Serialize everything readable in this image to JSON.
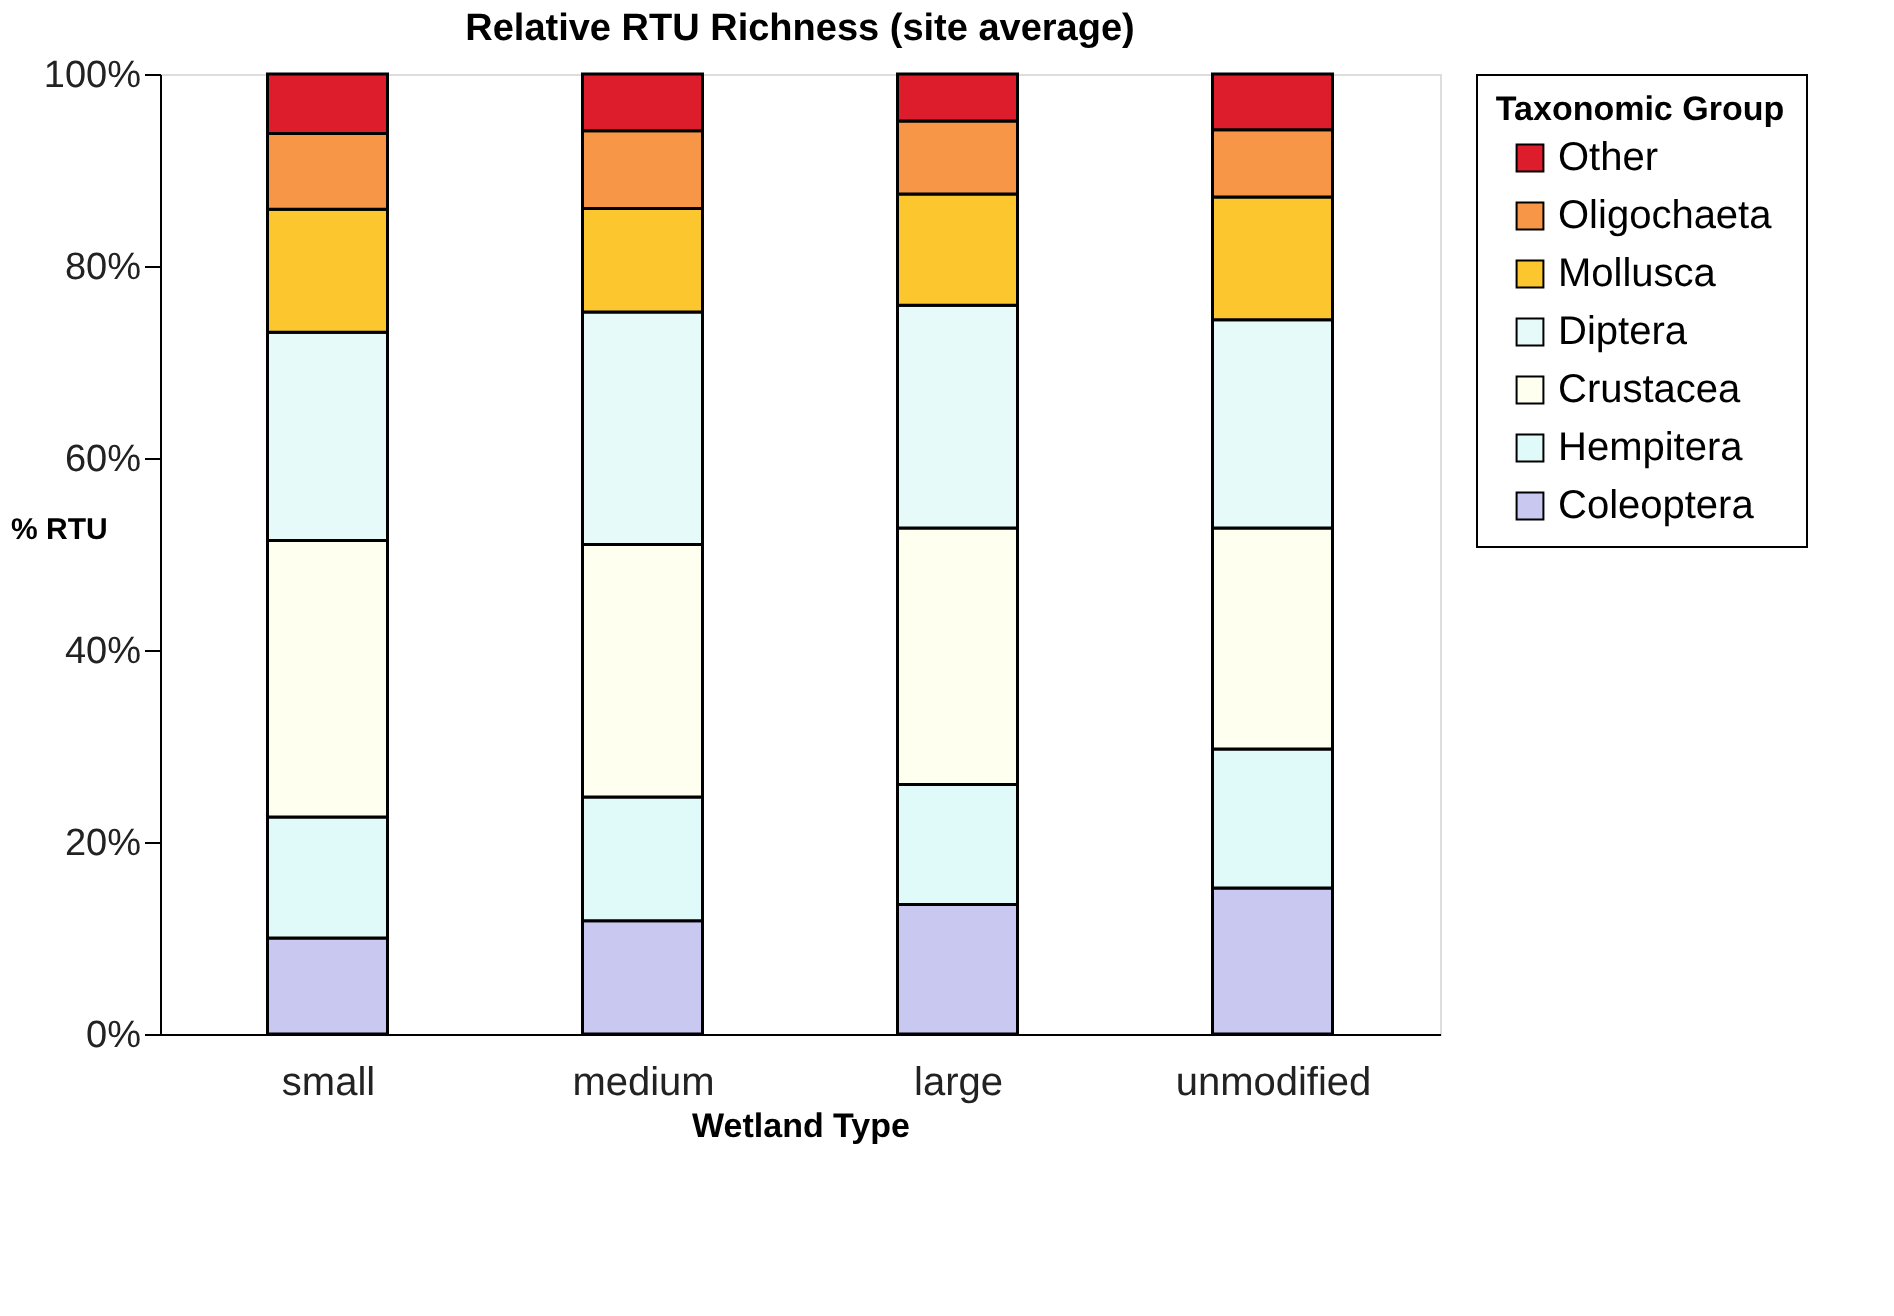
{
  "chart_data": {
    "type": "bar",
    "stacked": true,
    "title": "Relative RTU Richness (site average)",
    "xlabel": "Wetland Type",
    "ylabel": "% RTU",
    "legend_title": "Taxonomic Group",
    "legend": "right",
    "grid": false,
    "categories": [
      "small",
      "medium",
      "large",
      "unmodified"
    ],
    "ylim": [
      0,
      100
    ],
    "yticks": [
      {
        "value": 0,
        "label": "0%"
      },
      {
        "value": 20,
        "label": "20%"
      },
      {
        "value": 40,
        "label": "40%"
      },
      {
        "value": 60,
        "label": "60%"
      },
      {
        "value": 80,
        "label": "80%"
      },
      {
        "value": 100,
        "label": "100%"
      }
    ],
    "series": [
      {
        "name": "Coleoptera",
        "color": "#c8c8f0",
        "values": [
          10.0,
          11.8,
          13.5,
          15.2
        ]
      },
      {
        "name": "Hempitera",
        "color": "#e0fafa",
        "values": [
          12.6,
          12.9,
          12.5,
          14.5
        ]
      },
      {
        "name": "Crustacea",
        "color": "#fffff0",
        "values": [
          28.8,
          26.3,
          26.7,
          23.0
        ]
      },
      {
        "name": "Diptera",
        "color": "#e6fafa",
        "values": [
          21.7,
          24.2,
          23.2,
          21.7
        ]
      },
      {
        "name": "Mollusca",
        "color": "#fcc62e",
        "values": [
          12.8,
          10.8,
          11.6,
          12.8
        ]
      },
      {
        "name": "Oligochaeta",
        "color": "#f79646",
        "values": [
          7.9,
          8.1,
          7.6,
          7.0
        ]
      },
      {
        "name": "Other",
        "color": "#dd1c2c",
        "values": [
          6.2,
          5.9,
          4.9,
          5.8
        ]
      }
    ]
  }
}
